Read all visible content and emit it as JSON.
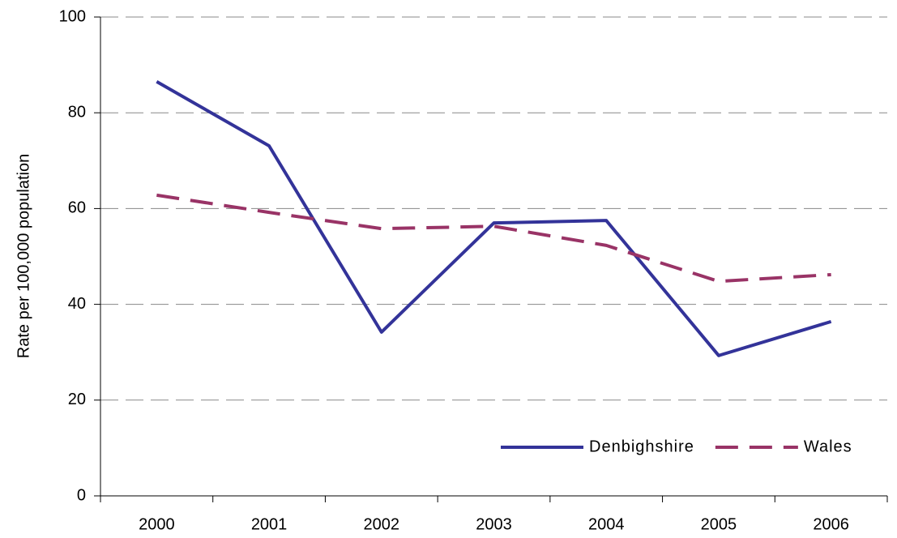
{
  "chart_data": {
    "type": "line",
    "y_label": "Rate per 100,000 population",
    "categories": [
      "2000",
      "2001",
      "2002",
      "2003",
      "2004",
      "2005",
      "2006"
    ],
    "series": [
      {
        "name": "Denbighshire",
        "color": "#333399",
        "line_style": "solid",
        "values": [
          86.5,
          73.1,
          34.2,
          57.0,
          57.5,
          29.3,
          36.4
        ]
      },
      {
        "name": "Wales",
        "color": "#993366",
        "line_style": "dashed",
        "values": [
          62.8,
          59.2,
          55.8,
          56.3,
          52.3,
          44.8,
          46.2
        ]
      }
    ],
    "ylim": [
      0,
      100
    ],
    "yticks": [
      0,
      20,
      40,
      60,
      80,
      100
    ],
    "grid": true,
    "legend": "lower right"
  }
}
